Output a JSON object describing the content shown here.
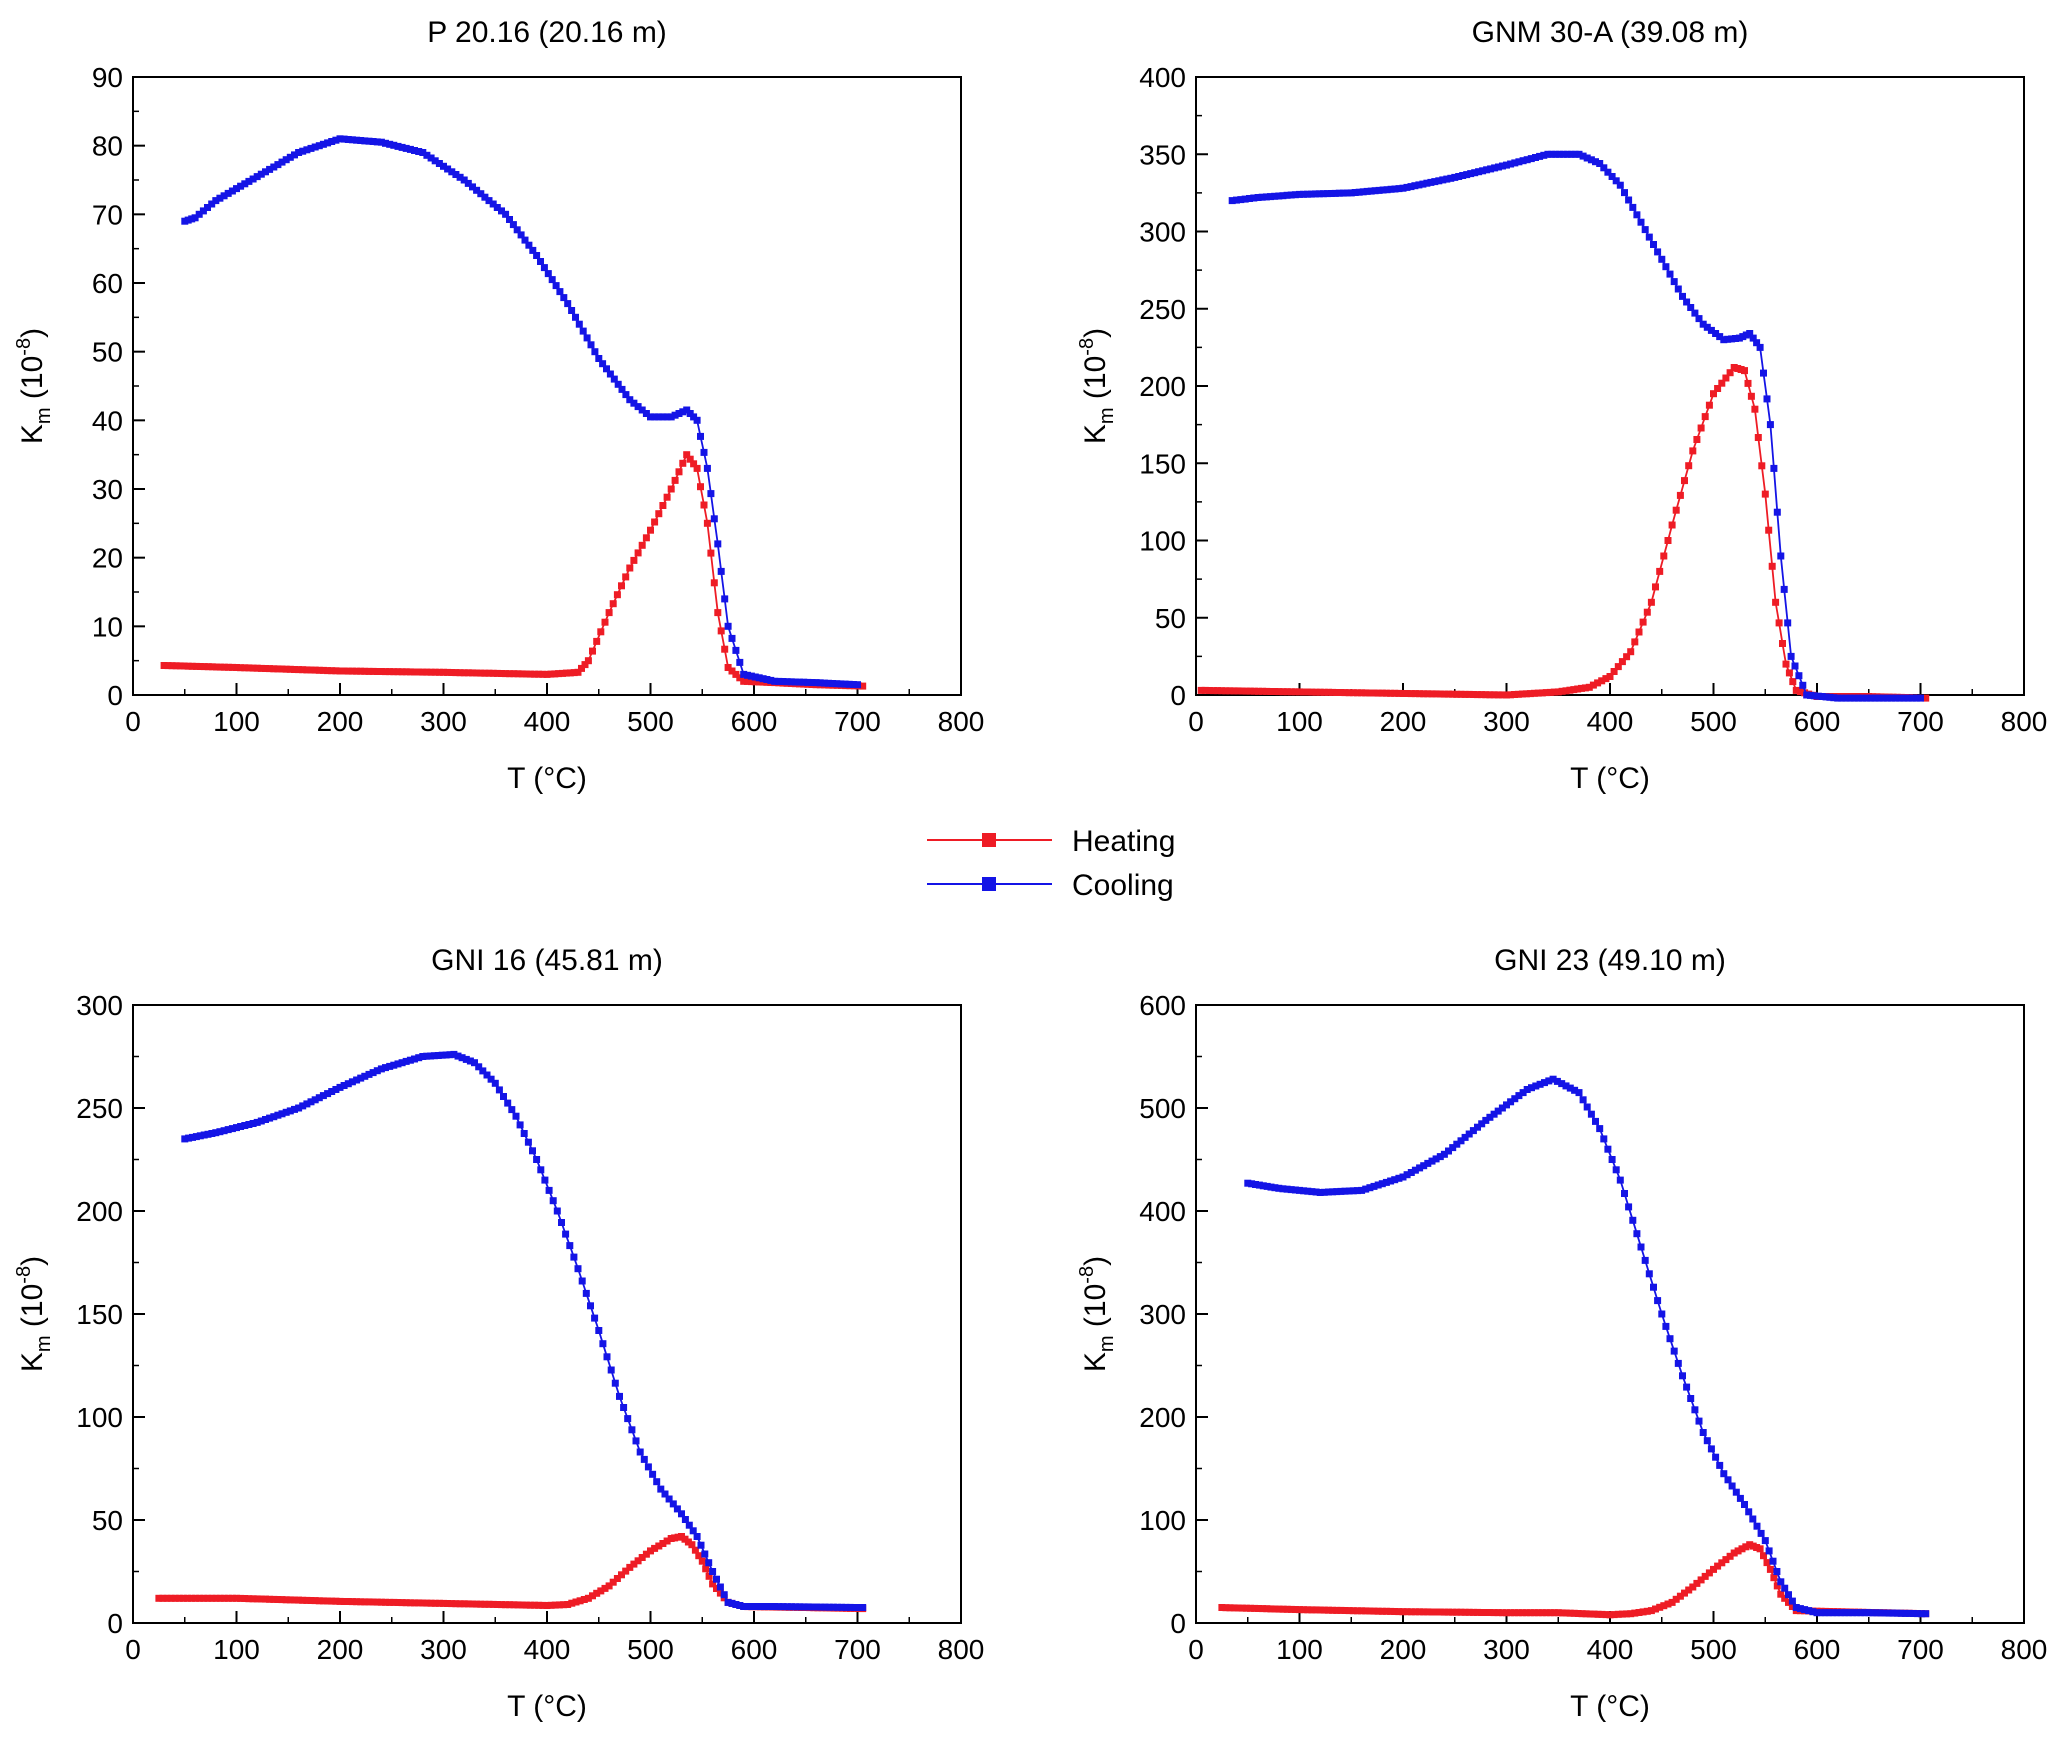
{
  "legend": {
    "entries": [
      {
        "label": "Heating",
        "color": "#ee1c25"
      },
      {
        "label": "Cooling",
        "color": "#1414e6"
      }
    ]
  },
  "chart_data": [
    {
      "type": "line",
      "title": "P 20.16 (20.16 m)",
      "xlabel": "T (°C)",
      "ylabel_main": "K",
      "ylabel_sub": "m",
      "ylabel_unit": " (10",
      "ylabel_exp": "-8",
      "ylabel_close": ")",
      "xlim": [
        0,
        800
      ],
      "ylim": [
        0,
        90
      ],
      "xticks": [
        0,
        100,
        200,
        300,
        400,
        500,
        600,
        700,
        800
      ],
      "yticks": [
        0,
        10,
        20,
        30,
        40,
        50,
        60,
        70,
        80,
        90
      ],
      "series": [
        {
          "name": "Heating",
          "color": "#ee1c25",
          "x": [
            30,
            100,
            200,
            300,
            400,
            430,
            440,
            460,
            480,
            500,
            520,
            535,
            545,
            555,
            565,
            575,
            590,
            620,
            660,
            705
          ],
          "y": [
            4.3,
            4.0,
            3.5,
            3.3,
            3.0,
            3.3,
            5.0,
            12.0,
            18.5,
            24.0,
            30.0,
            35.0,
            33.0,
            25.0,
            12.0,
            4.0,
            2.0,
            1.8,
            1.5,
            1.3
          ]
        },
        {
          "name": "Cooling",
          "color": "#1414e6",
          "x": [
            50,
            60,
            80,
            120,
            160,
            200,
            240,
            280,
            320,
            360,
            390,
            420,
            450,
            480,
            500,
            520,
            535,
            545,
            555,
            565,
            575,
            590,
            620,
            660,
            700
          ],
          "y": [
            69,
            69.5,
            72,
            75.5,
            79,
            81,
            80.5,
            79,
            75,
            70,
            64,
            57,
            49,
            43,
            40.5,
            40.5,
            41.5,
            40,
            33,
            22,
            10,
            3,
            2,
            1.8,
            1.5
          ]
        }
      ]
    },
    {
      "type": "line",
      "title": "GNM 30-A (39.08 m)",
      "xlabel": "T (°C)",
      "ylabel_main": "K",
      "ylabel_sub": "m",
      "ylabel_unit": " (10",
      "ylabel_exp": "-8",
      "ylabel_close": ")",
      "xlim": [
        0,
        800
      ],
      "ylim": [
        0,
        400
      ],
      "xticks": [
        0,
        100,
        200,
        300,
        400,
        500,
        600,
        700,
        800
      ],
      "yticks": [
        0,
        50,
        100,
        150,
        200,
        250,
        300,
        350,
        400
      ],
      "series": [
        {
          "name": "Heating",
          "color": "#ee1c25",
          "x": [
            5,
            100,
            200,
            300,
            350,
            380,
            400,
            420,
            440,
            460,
            480,
            500,
            520,
            530,
            540,
            550,
            560,
            570,
            580,
            600,
            650,
            705
          ],
          "y": [
            3,
            2,
            1,
            0,
            2,
            5,
            12,
            28,
            60,
            110,
            158,
            195,
            212,
            210,
            185,
            130,
            60,
            20,
            3,
            -1,
            -1,
            -2
          ]
        },
        {
          "name": "Cooling",
          "color": "#1414e6",
          "x": [
            35,
            60,
            100,
            150,
            200,
            250,
            300,
            340,
            370,
            390,
            410,
            430,
            450,
            470,
            490,
            510,
            525,
            535,
            545,
            555,
            565,
            575,
            590,
            620,
            700
          ],
          "y": [
            320,
            322,
            324,
            325,
            328,
            335,
            343,
            350,
            350,
            344,
            330,
            306,
            282,
            258,
            240,
            230,
            231,
            234,
            225,
            175,
            90,
            25,
            0,
            -2,
            -2
          ]
        }
      ]
    },
    {
      "type": "line",
      "title": "GNI 16 (45.81 m)",
      "xlabel": "T (°C)",
      "ylabel_main": "K",
      "ylabel_sub": "m",
      "ylabel_unit": " (10",
      "ylabel_exp": "-8",
      "ylabel_close": ")",
      "xlim": [
        0,
        800
      ],
      "ylim": [
        0,
        300
      ],
      "xticks": [
        0,
        100,
        200,
        300,
        400,
        500,
        600,
        700,
        800
      ],
      "yticks": [
        0,
        50,
        100,
        150,
        200,
        250,
        300
      ],
      "series": [
        {
          "name": "Heating",
          "color": "#ee1c25",
          "x": [
            25,
            100,
            200,
            300,
            400,
            420,
            440,
            460,
            480,
            500,
            520,
            530,
            540,
            550,
            560,
            575,
            590,
            650,
            705
          ],
          "y": [
            12,
            12,
            10.5,
            9.5,
            8.5,
            9,
            12,
            18,
            27,
            35,
            41,
            42,
            38,
            30,
            19,
            10,
            8,
            7.5,
            7
          ]
        },
        {
          "name": "Cooling",
          "color": "#1414e6",
          "x": [
            50,
            80,
            120,
            160,
            200,
            240,
            280,
            310,
            330,
            350,
            370,
            390,
            410,
            430,
            450,
            470,
            490,
            510,
            530,
            545,
            560,
            575,
            590,
            620,
            705
          ],
          "y": [
            235,
            238,
            243,
            250,
            260,
            269,
            275,
            276,
            272,
            262,
            246,
            225,
            200,
            172,
            142,
            110,
            83,
            65,
            53,
            42,
            25,
            10,
            8,
            8,
            7.5
          ]
        }
      ]
    },
    {
      "type": "line",
      "title": "GNI 23 (49.10 m)",
      "xlabel": "T (°C)",
      "ylabel_main": "K",
      "ylabel_sub": "m",
      "ylabel_unit": " (10",
      "ylabel_exp": "-8",
      "ylabel_close": ")",
      "xlim": [
        0,
        800
      ],
      "ylim": [
        0,
        600
      ],
      "xticks": [
        0,
        100,
        200,
        300,
        400,
        500,
        600,
        700,
        800
      ],
      "yticks": [
        0,
        100,
        200,
        300,
        400,
        500,
        600
      ],
      "series": [
        {
          "name": "Heating",
          "color": "#ee1c25",
          "x": [
            25,
            100,
            200,
            300,
            350,
            400,
            420,
            440,
            460,
            480,
            500,
            520,
            535,
            545,
            555,
            565,
            580,
            620,
            705
          ],
          "y": [
            15,
            13,
            11,
            10,
            10,
            8,
            9,
            12,
            20,
            35,
            52,
            68,
            76,
            72,
            52,
            28,
            12,
            11,
            9
          ]
        },
        {
          "name": "Cooling",
          "color": "#1414e6",
          "x": [
            50,
            80,
            120,
            160,
            200,
            240,
            280,
            320,
            345,
            370,
            390,
            410,
            430,
            450,
            470,
            490,
            510,
            530,
            550,
            565,
            580,
            600,
            650,
            705
          ],
          "y": [
            427,
            422,
            418,
            420,
            433,
            455,
            488,
            518,
            528,
            515,
            480,
            430,
            365,
            300,
            240,
            185,
            145,
            115,
            80,
            40,
            15,
            10,
            10,
            9
          ]
        }
      ]
    }
  ]
}
